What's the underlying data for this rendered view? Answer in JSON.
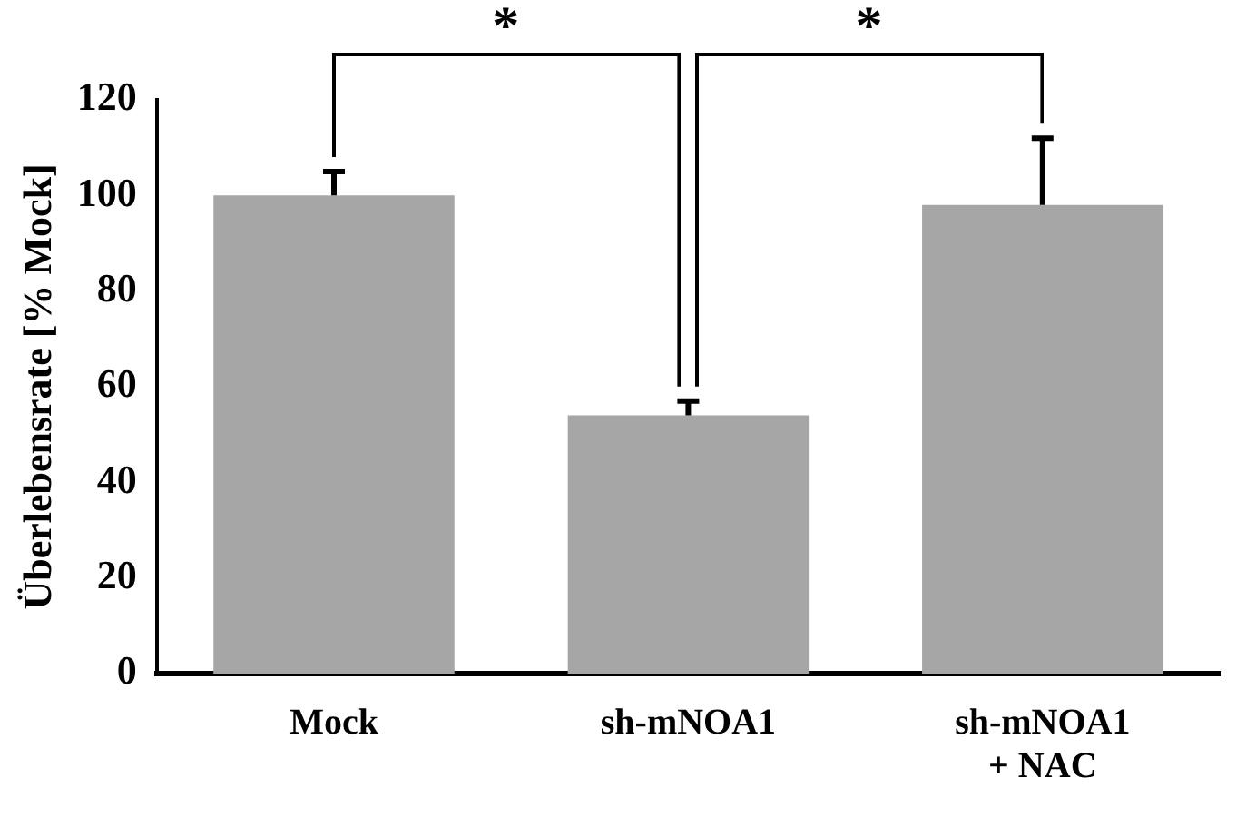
{
  "chart_data": {
    "type": "bar",
    "ylabel": "Überlebensrate [% Mock]",
    "categories": [
      "Mock",
      "sh-mNOA1",
      "sh-mNOA1\n+ NAC"
    ],
    "values": [
      100,
      54,
      98
    ],
    "errors": [
      5,
      3,
      14
    ],
    "color": "#a6a6a6",
    "ylim": [
      0,
      120
    ],
    "yticks": [
      0,
      20,
      40,
      60,
      80,
      100,
      120
    ],
    "grid": false,
    "legend": false,
    "annotations": [
      "*",
      "*"
    ]
  }
}
